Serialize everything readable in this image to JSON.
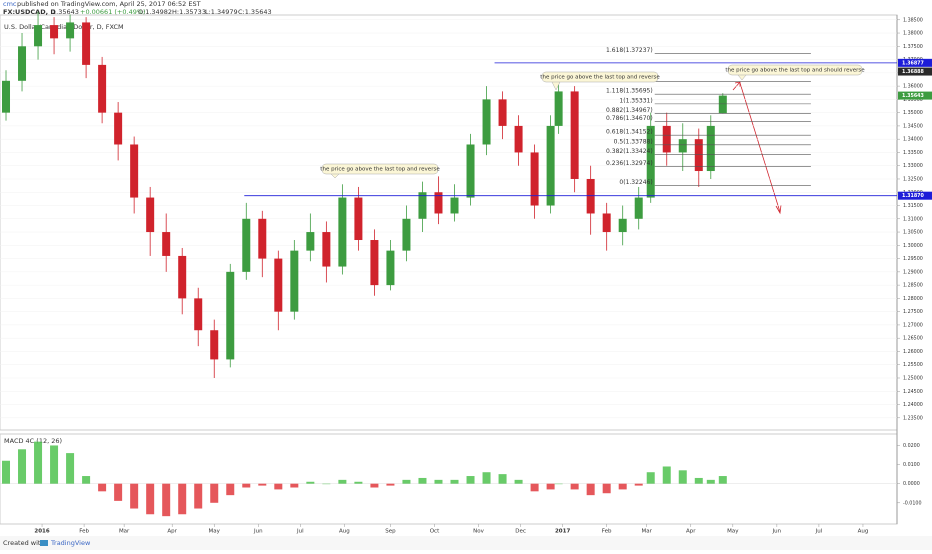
{
  "header": {
    "author": "cmc",
    "published": "published on TradingView.com, April 25, 2017 06:52 EST",
    "symbol": "FX:USDCAD, D",
    "last": "1.35643",
    "change": "+0.00661 (+0.49%)",
    "open": "O:1.34982",
    "high": "H:1.35733",
    "low": "L:1.34979",
    "close": "C:1.35643"
  },
  "footer": {
    "created": "Created with",
    "brand": "TradingView"
  },
  "chart_data": [
    {
      "type": "candlestick",
      "title": "U.S. Dollar/Canadian Dollar, D, FXCM",
      "x": [
        -18,
        -10,
        -2,
        6,
        14,
        22,
        30,
        38,
        46,
        54,
        62,
        70,
        78,
        86,
        94,
        102,
        110,
        118,
        126,
        134,
        142,
        150,
        158,
        166,
        174,
        182,
        190,
        198,
        206,
        214,
        222,
        230,
        238,
        246,
        254,
        258,
        266,
        274,
        282,
        290,
        298,
        304,
        312,
        320,
        328,
        334,
        340
      ],
      "open": [
        1.35,
        1.362,
        1.375,
        1.383,
        1.378,
        1.384,
        1.368,
        1.35,
        1.338,
        1.318,
        1.305,
        1.296,
        1.28,
        1.268,
        1.257,
        1.29,
        1.31,
        1.295,
        1.275,
        1.298,
        1.305,
        1.292,
        1.318,
        1.302,
        1.285,
        1.298,
        1.31,
        1.32,
        1.312,
        1.318,
        1.338,
        1.355,
        1.345,
        1.335,
        1.315,
        1.345,
        1.358,
        1.325,
        1.312,
        1.305,
        1.31,
        1.318,
        1.345,
        1.335,
        1.34,
        1.328,
        1.34982
      ],
      "high": [
        1.366,
        1.38,
        1.388,
        1.386,
        1.387,
        1.386,
        1.371,
        1.354,
        1.341,
        1.322,
        1.312,
        1.299,
        1.284,
        1.272,
        1.293,
        1.316,
        1.313,
        1.298,
        1.302,
        1.312,
        1.309,
        1.323,
        1.322,
        1.306,
        1.302,
        1.315,
        1.324,
        1.326,
        1.323,
        1.342,
        1.36,
        1.358,
        1.349,
        1.338,
        1.349,
        1.362,
        1.36,
        1.33,
        1.316,
        1.315,
        1.322,
        1.35,
        1.35,
        1.346,
        1.344,
        1.349,
        1.35733
      ],
      "low": [
        1.347,
        1.358,
        1.37,
        1.372,
        1.373,
        1.363,
        1.346,
        1.332,
        1.312,
        1.296,
        1.29,
        1.274,
        1.262,
        1.25,
        1.254,
        1.287,
        1.288,
        1.268,
        1.272,
        1.294,
        1.286,
        1.289,
        1.298,
        1.281,
        1.283,
        1.294,
        1.305,
        1.308,
        1.309,
        1.315,
        1.334,
        1.34,
        1.33,
        1.31,
        1.312,
        1.342,
        1.32,
        1.304,
        1.298,
        1.3,
        1.306,
        1.316,
        1.33,
        1.328,
        1.322,
        1.325,
        1.34979
      ],
      "close": [
        1.362,
        1.375,
        1.383,
        1.378,
        1.384,
        1.368,
        1.35,
        1.338,
        1.318,
        1.305,
        1.296,
        1.28,
        1.268,
        1.257,
        1.29,
        1.31,
        1.295,
        1.275,
        1.298,
        1.305,
        1.292,
        1.318,
        1.302,
        1.285,
        1.298,
        1.31,
        1.32,
        1.312,
        1.318,
        1.338,
        1.355,
        1.345,
        1.335,
        1.315,
        1.345,
        1.358,
        1.325,
        1.312,
        1.305,
        1.31,
        1.318,
        1.345,
        1.335,
        1.34,
        1.328,
        1.345,
        1.35643
      ],
      "up_color": "#3d9c40",
      "down_color": "#d0232c",
      "xlim": [
        -21,
        427
      ],
      "ylim": [
        1.2304,
        1.3868
      ],
      "yticks": [
        {
          "value": 1.235,
          "label": "1.23500"
        },
        {
          "value": 1.24,
          "label": "1.24000"
        },
        {
          "value": 1.245,
          "label": "1.24500"
        },
        {
          "value": 1.25,
          "label": "1.25000"
        },
        {
          "value": 1.255,
          "label": "1.25500"
        },
        {
          "value": 1.26,
          "label": "1.26000"
        },
        {
          "value": 1.265,
          "label": "1.26500"
        },
        {
          "value": 1.27,
          "label": "1.27000"
        },
        {
          "value": 1.275,
          "label": "1.27500"
        },
        {
          "value": 1.28,
          "label": "1.28000"
        },
        {
          "value": 1.285,
          "label": "1.28500"
        },
        {
          "value": 1.29,
          "label": "1.29000"
        },
        {
          "value": 1.295,
          "label": "1.29500"
        },
        {
          "value": 1.3,
          "label": "1.30000"
        },
        {
          "value": 1.305,
          "label": "1.30500"
        },
        {
          "value": 1.31,
          "label": "1.31000"
        },
        {
          "value": 1.315,
          "label": "1.31500"
        },
        {
          "value": 1.32,
          "label": "1.32000"
        },
        {
          "value": 1.325,
          "label": "1.32500"
        },
        {
          "value": 1.33,
          "label": "1.33000"
        },
        {
          "value": 1.335,
          "label": "1.33500"
        },
        {
          "value": 1.34,
          "label": "1.34000"
        },
        {
          "value": 1.345,
          "label": "1.34500"
        },
        {
          "value": 1.35,
          "label": "1.35000"
        },
        {
          "value": 1.355,
          "label": "1.35500"
        },
        {
          "value": 1.36,
          "label": "1.36000"
        },
        {
          "value": 1.365,
          "label": "1.36500"
        },
        {
          "value": 1.37,
          "label": "1.37000"
        },
        {
          "value": 1.375,
          "label": "1.37500"
        },
        {
          "value": 1.38,
          "label": "1.38000"
        },
        {
          "value": 1.385,
          "label": "1.38500"
        }
      ],
      "hlines": [
        {
          "value": 1.36877,
          "label": "1.36877",
          "color": "#1d1dd8",
          "from": 226
        },
        {
          "value": 1.3187,
          "label": "1.31870",
          "color": "#1d1dd8",
          "from": 101
        }
      ],
      "price_labels": [
        {
          "value": 1.36888,
          "label": "1.36888",
          "color": "#2a2a2a"
        },
        {
          "value": 1.35643,
          "label": "1.35643",
          "color": "#3d9c40"
        }
      ],
      "fib_color": "#555555",
      "fib_from": 306,
      "fib_to": 384,
      "fib": [
        {
          "label": "1.618(1.37237)",
          "value": 1.37237
        },
        {
          "label": "1.272(1.36170)",
          "value": 1.3617
        },
        {
          "label": "1.118(1.35695)",
          "value": 1.35695
        },
        {
          "label": "1(1.35331)",
          "value": 1.35331
        },
        {
          "label": "0.882(1.34967)",
          "value": 1.34967
        },
        {
          "label": "0.786(1.34670)",
          "value": 1.3467
        },
        {
          "label": "0.618(1.34152)",
          "value": 1.34152
        },
        {
          "label": "0.5(1.33788)",
          "value": 1.33788
        },
        {
          "label": "0.382(1.33424)",
          "value": 1.33424
        },
        {
          "label": "0.236(1.32974)",
          "value": 1.32974
        },
        {
          "label": "0(1.32246)",
          "value": 1.32246
        }
      ],
      "annotations": [
        "the price go above the last top and reverse",
        "the price go above the last top and reverse",
        "the price go above the last top and should reverse"
      ]
    },
    {
      "type": "histogram",
      "title": "MACD 4C (12, 26)",
      "values": [
        0.012,
        0.018,
        0.022,
        0.02,
        0.016,
        0.004,
        -0.004,
        -0.009,
        -0.013,
        -0.016,
        -0.017,
        -0.016,
        -0.013,
        -0.01,
        -0.006,
        -0.002,
        -0.001,
        -0.003,
        -0.002,
        0.001,
        0.0,
        0.002,
        0.001,
        -0.002,
        -0.001,
        0.002,
        0.003,
        0.002,
        0.002,
        0.004,
        0.006,
        0.005,
        0.002,
        -0.004,
        -0.003,
        0.0,
        -0.003,
        -0.006,
        -0.005,
        -0.003,
        -0.001,
        0.006,
        0.009,
        0.007,
        0.003,
        0.002,
        0.004
      ],
      "pos_color": "#4fc24f",
      "neg_color": "#e0393e",
      "ylim": [
        -0.0211,
        0.026
      ],
      "yticks": [
        {
          "value": 0.02,
          "label": "0.0200"
        },
        {
          "value": 0.01,
          "label": "0.0100"
        },
        {
          "value": 0,
          "label": "0.0000"
        },
        {
          "value": -0.01,
          "label": "-0.0100"
        }
      ],
      "xticks": [
        {
          "value": 0,
          "label": "2016"
        },
        {
          "value": 21,
          "label": "Feb"
        },
        {
          "value": 41,
          "label": "Mar"
        },
        {
          "value": 65,
          "label": "Apr"
        },
        {
          "value": 86,
          "label": "May"
        },
        {
          "value": 108,
          "label": "Jun"
        },
        {
          "value": 129,
          "label": "Jul"
        },
        {
          "value": 151,
          "label": "Aug"
        },
        {
          "value": 174,
          "label": "Sep"
        },
        {
          "value": 196,
          "label": "Oct"
        },
        {
          "value": 218,
          "label": "Nov"
        },
        {
          "value": 239,
          "label": "Dec"
        },
        {
          "value": 260,
          "label": "2017"
        },
        {
          "value": 282,
          "label": "Feb"
        },
        {
          "value": 302,
          "label": "Mar"
        },
        {
          "value": 324,
          "label": "Apr"
        },
        {
          "value": 345,
          "label": "May"
        },
        {
          "value": 367,
          "label": "Jun"
        },
        {
          "value": 388,
          "label": "Jul"
        },
        {
          "value": 410,
          "label": "Aug"
        }
      ]
    }
  ]
}
